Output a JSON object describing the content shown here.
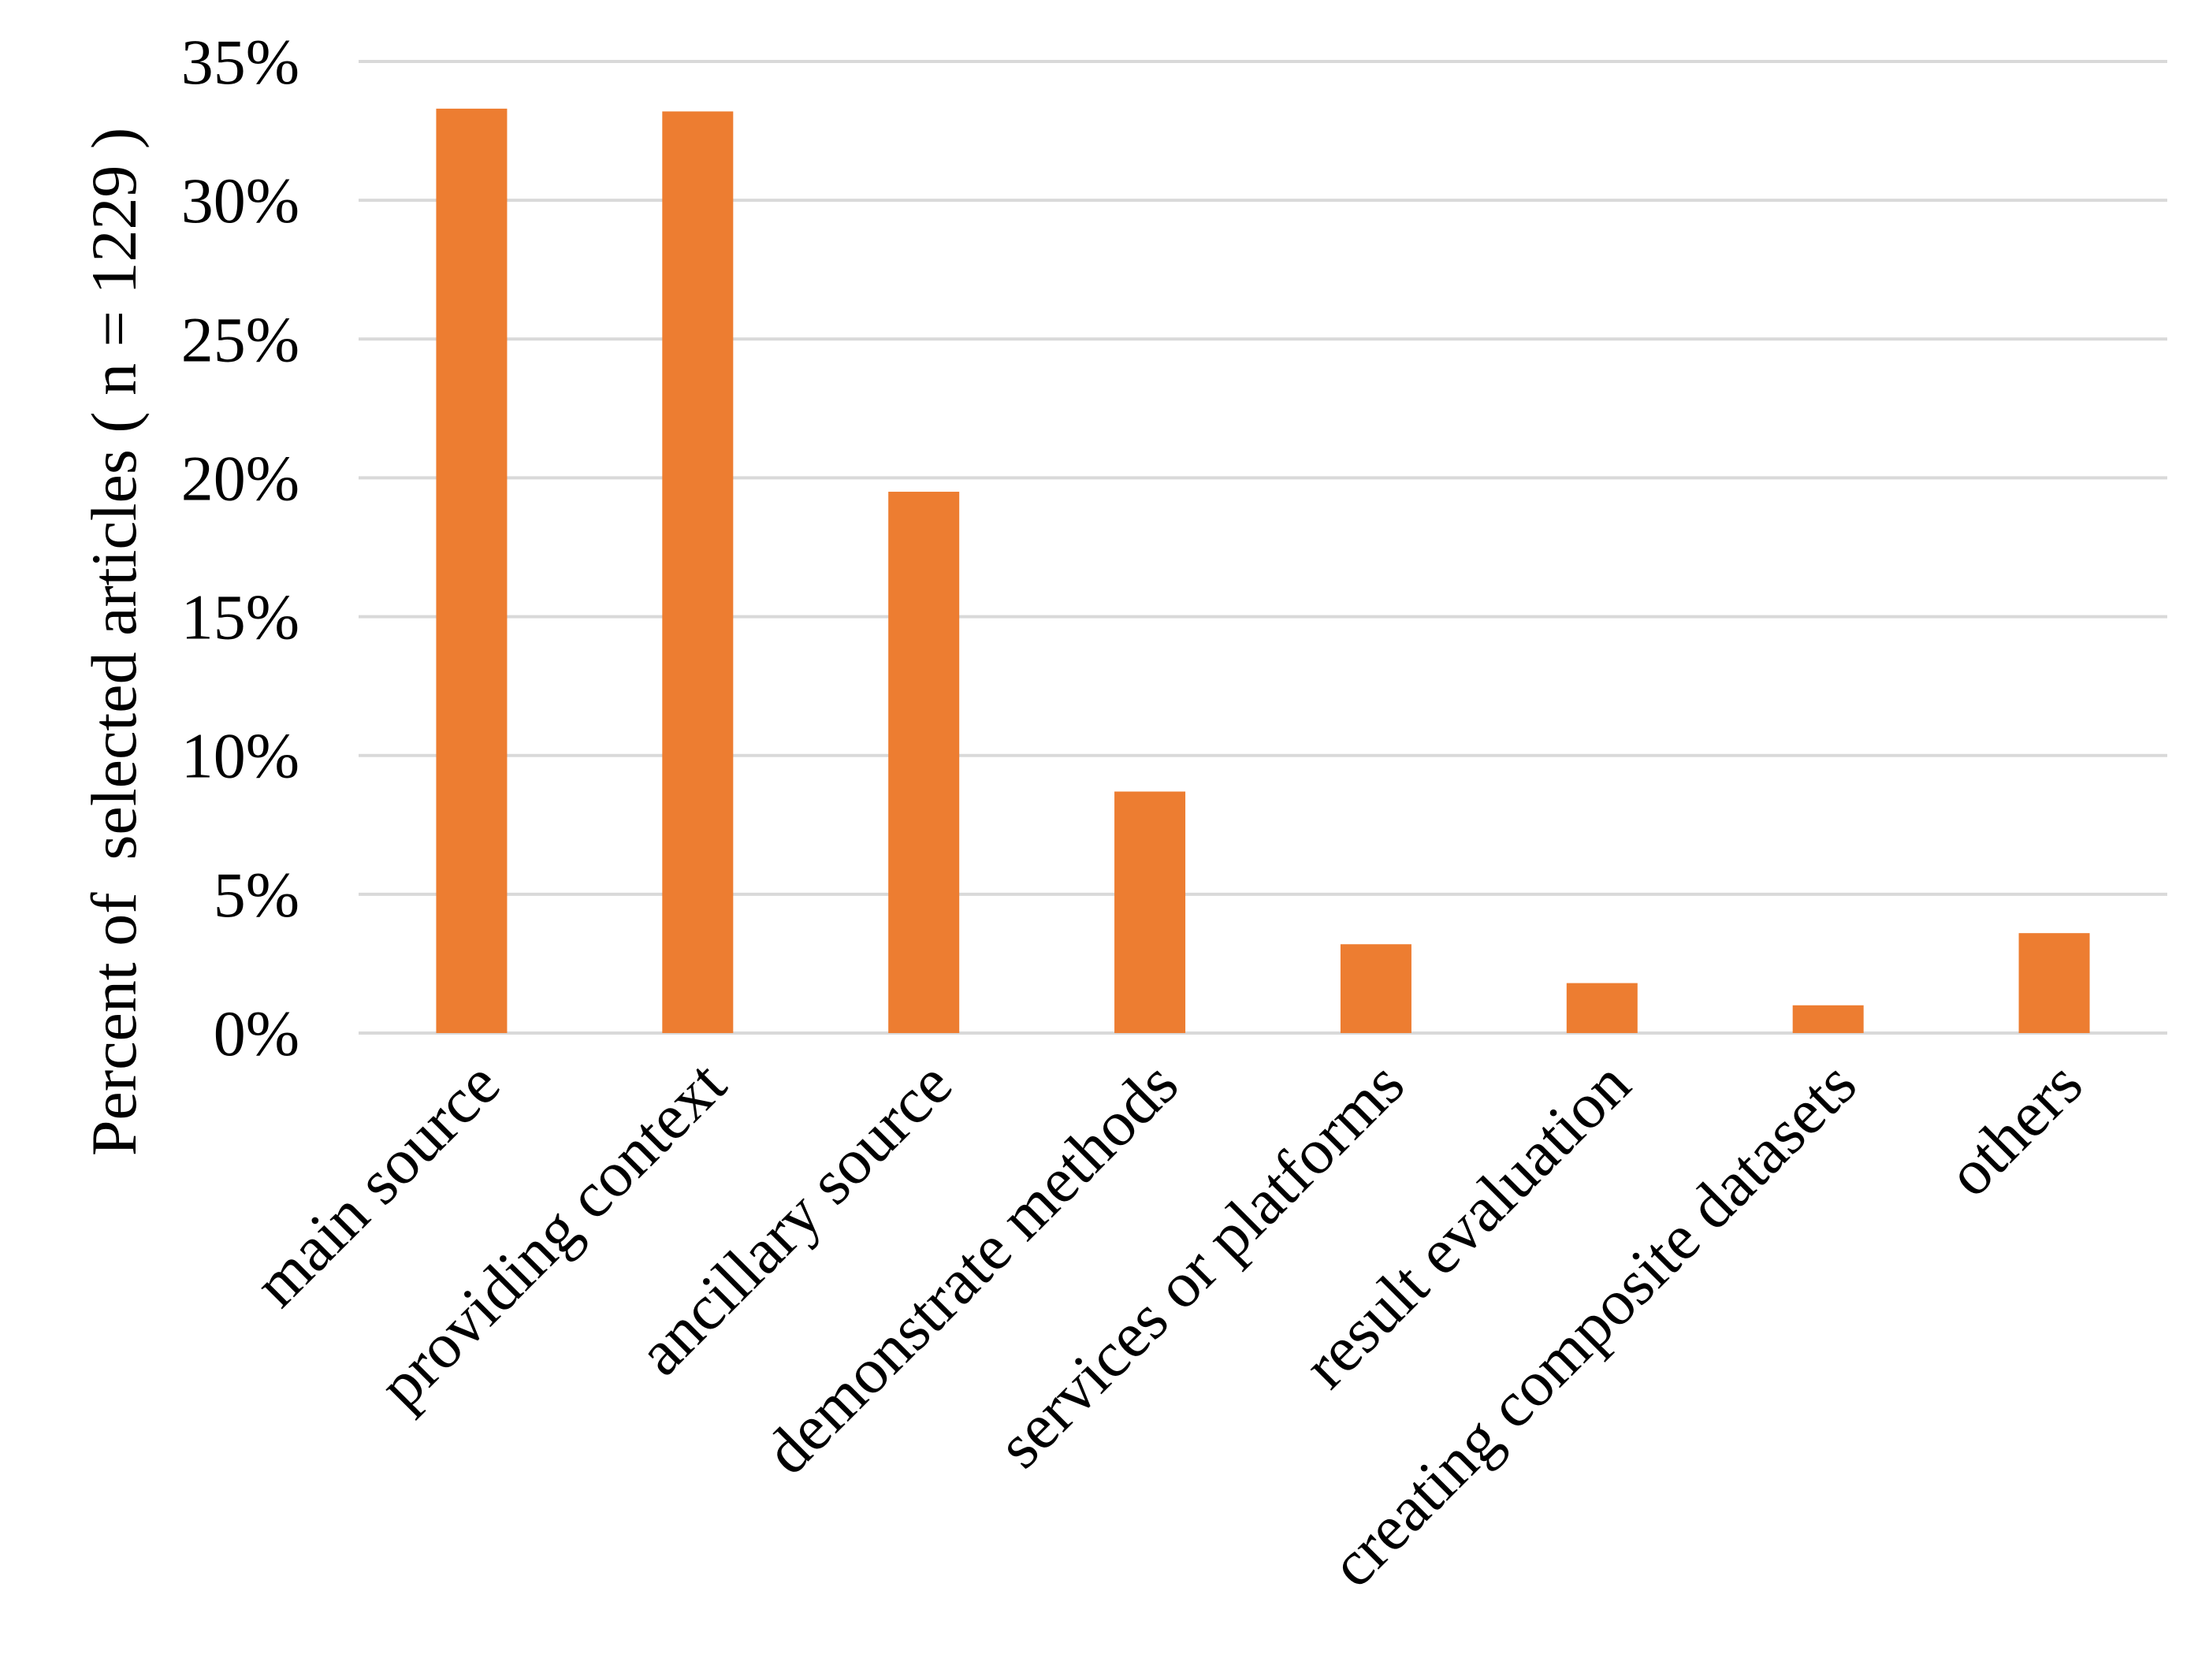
{
  "chart_data": {
    "type": "bar",
    "title": "",
    "xlabel": "",
    "ylabel": "Percent of  selected articles ( n = 1229 )",
    "categories": [
      "main source",
      "providing context",
      "ancillary source",
      "demonstrate methods",
      "services or platforms",
      "result evaluation",
      "creating composite datasets",
      "others"
    ],
    "values": [
      0.333,
      0.332,
      0.195,
      0.087,
      0.032,
      0.018,
      0.01,
      0.036
    ],
    "ylim": [
      0,
      0.35
    ],
    "yticks": [
      0,
      0.05,
      0.1,
      0.15,
      0.2,
      0.25,
      0.3,
      0.35
    ],
    "ytick_labels": [
      "0%",
      "5%",
      "10%",
      "15%",
      "20%",
      "25%",
      "30%",
      "35%"
    ],
    "grid": true,
    "legend": "none",
    "bar_color": "#ED7D31",
    "grid_color": "#D9D9D9"
  }
}
